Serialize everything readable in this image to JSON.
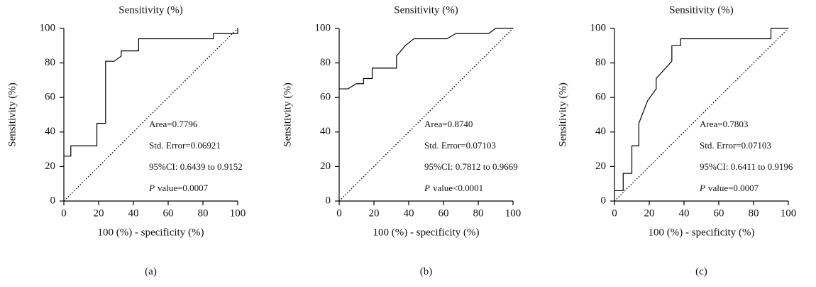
{
  "chart_data": [
    {
      "type": "line",
      "title": "Sensitivity (%)",
      "ylabel": "Sensitivity (%)",
      "xlabel": "100 (%) - specificity (%)",
      "caption": "(a)",
      "annotations": [
        "Area=0.7796",
        "Std. Error=0.06921",
        "95%CI: 0.6439 to 0.9152"
      ],
      "p_symbol": "P",
      "p_text": "value=0.0007",
      "xlim": [
        0,
        100
      ],
      "ylim": [
        0,
        100
      ],
      "xticks": [
        0,
        20,
        40,
        60,
        80,
        100
      ],
      "yticks": [
        0,
        20,
        40,
        60,
        80,
        100
      ],
      "series": [
        {
          "color": "#000",
          "x": [
            0,
            4,
            4,
            19,
            19,
            24,
            24,
            29,
            33,
            33,
            43,
            43,
            86,
            86,
            100,
            100
          ],
          "values": [
            26,
            26,
            32,
            32,
            45,
            45,
            81,
            81,
            84,
            87,
            87,
            94,
            94,
            97,
            97,
            100
          ]
        },
        {
          "color": "#000",
          "dotted": true,
          "x": [
            0,
            100
          ],
          "values": [
            0,
            100
          ]
        }
      ]
    },
    {
      "type": "line",
      "title": "Sensitivity (%)",
      "ylabel": "Sensitivity (%)",
      "xlabel": "100 (%) - specificity (%)",
      "caption": "(b)",
      "annotations": [
        "Area=0.8740",
        "Std. Error=0.07103",
        "95%CI: 0.7812 to 0.9669"
      ],
      "p_symbol": "P",
      "p_text": "value<0.0001",
      "xlim": [
        0,
        100
      ],
      "ylim": [
        0,
        100
      ],
      "xticks": [
        0,
        20,
        40,
        60,
        80,
        100
      ],
      "yticks": [
        0,
        20,
        40,
        60,
        80,
        100
      ],
      "series": [
        {
          "color": "#000",
          "x": [
            0,
            5,
            10,
            14,
            14,
            19,
            19,
            33,
            33,
            38,
            43,
            62,
            67,
            86,
            90,
            100
          ],
          "values": [
            65,
            65,
            68,
            68,
            71,
            71,
            77,
            77,
            84,
            90,
            94,
            94,
            97,
            97,
            100,
            100
          ]
        },
        {
          "color": "#000",
          "dotted": true,
          "x": [
            0,
            100
          ],
          "values": [
            0,
            100
          ]
        }
      ]
    },
    {
      "type": "line",
      "title": "Sensitivity (%)",
      "ylabel": "Sensitivity (%)",
      "xlabel": "100 (%) - specificity (%)",
      "caption": "(c)",
      "annotations": [
        "Area=0.7803",
        "Std. Error=0.07103",
        "95%CI: 0.6411 to 0.9196"
      ],
      "p_symbol": "P",
      "p_text": "value=0.0007",
      "xlim": [
        0,
        100
      ],
      "ylim": [
        0,
        100
      ],
      "xticks": [
        0,
        20,
        40,
        60,
        80,
        100
      ],
      "yticks": [
        0,
        20,
        40,
        60,
        80,
        100
      ],
      "series": [
        {
          "color": "#000",
          "x": [
            0,
            5,
            5,
            10,
            10,
            14,
            14,
            19,
            24,
            24,
            33,
            33,
            38,
            38,
            90,
            90,
            100
          ],
          "values": [
            6,
            6,
            16,
            16,
            32,
            32,
            45,
            58,
            65,
            71,
            81,
            90,
            90,
            94,
            94,
            100,
            100
          ]
        },
        {
          "color": "#000",
          "dotted": true,
          "x": [
            0,
            100
          ],
          "values": [
            0,
            100
          ]
        }
      ]
    }
  ]
}
